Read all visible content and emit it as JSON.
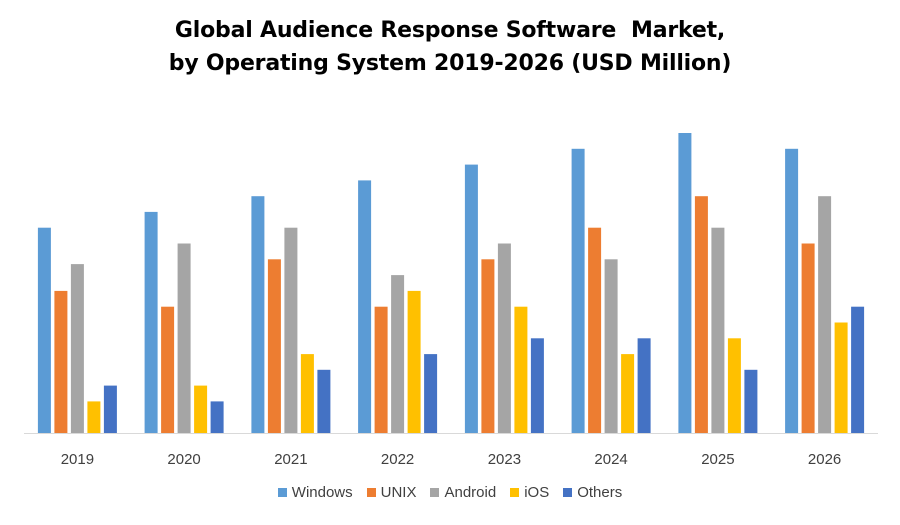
{
  "chart_data": {
    "type": "bar",
    "title_line1": "Global Audience Response Software  Market,",
    "title_line2": "by Operating System 2019-2026 (USD Million)",
    "categories": [
      "2019",
      "2020",
      "2021",
      "2022",
      "2023",
      "2024",
      "2025",
      "2026"
    ],
    "series": [
      {
        "name": "Windows",
        "color": "#5B9BD5",
        "values": [
          13,
          14,
          15,
          16,
          17,
          18,
          19,
          18
        ]
      },
      {
        "name": "UNIX",
        "color": "#ED7D31",
        "values": [
          9,
          8,
          11,
          8,
          11,
          13,
          15,
          12
        ]
      },
      {
        "name": "Android",
        "color": "#A5A5A5",
        "values": [
          10.7,
          12,
          13,
          10,
          12,
          11,
          13,
          15
        ]
      },
      {
        "name": "iOS",
        "color": "#FFC000",
        "values": [
          2,
          3,
          5,
          9,
          8,
          5,
          6,
          7
        ]
      },
      {
        "name": "Others",
        "color": "#4472C4",
        "values": [
          3,
          2,
          4,
          5,
          6,
          6,
          4,
          8
        ]
      }
    ],
    "ylim": [
      0,
      19
    ],
    "grid": false,
    "legend_position": "bottom"
  }
}
